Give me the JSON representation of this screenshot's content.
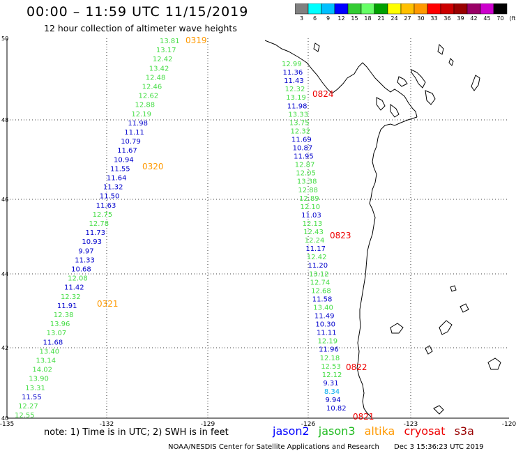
{
  "header": {
    "title": "00:00 – 11:59 UTC 11/15/2019",
    "subtitle": "12 hour collection of altimeter wave heights"
  },
  "color_scale": {
    "labels": [
      "3",
      "6",
      "9",
      "12",
      "15",
      "18",
      "21",
      "24",
      "27",
      "30",
      "33",
      "36",
      "39",
      "42",
      "45",
      "70",
      "(ft)"
    ],
    "colors": [
      "#808080",
      "#00ffff",
      "#00bfff",
      "#0000ff",
      "#33cc33",
      "#66ff66",
      "#00a000",
      "#ffff00",
      "#ffc000",
      "#ff9900",
      "#ff0000",
      "#cc0000",
      "#990000",
      "#990066",
      "#cc00cc",
      "#000000"
    ]
  },
  "map": {
    "lat_labels": [
      "50",
      "48",
      "46",
      "44",
      "42",
      "40"
    ],
    "lon_labels": [
      "-135",
      "-132",
      "-129",
      "-126",
      "-123",
      "-120"
    ],
    "tracks": [
      {
        "id": "track-0319-0321",
        "points": [
          {
            "v": "13.81",
            "c": "green"
          },
          {
            "v": "13.17",
            "c": "green"
          },
          {
            "v": "12.42",
            "c": "green"
          },
          {
            "v": "13.42",
            "c": "green"
          },
          {
            "v": "12.48",
            "c": "green"
          },
          {
            "v": "12.46",
            "c": "green"
          },
          {
            "v": "12.62",
            "c": "green"
          },
          {
            "v": "12.88",
            "c": "green"
          },
          {
            "v": "12.19",
            "c": "green"
          },
          {
            "v": "11.98",
            "c": "blue"
          },
          {
            "v": "11.11",
            "c": "blue"
          },
          {
            "v": "10.79",
            "c": "blue"
          },
          {
            "v": "11.67",
            "c": "blue"
          },
          {
            "v": "10.94",
            "c": "blue"
          },
          {
            "v": "11.55",
            "c": "blue"
          },
          {
            "v": "11.64",
            "c": "blue"
          },
          {
            "v": "11.32",
            "c": "blue"
          },
          {
            "v": "11.50",
            "c": "blue"
          },
          {
            "v": "11.63",
            "c": "blue"
          },
          {
            "v": "12.75",
            "c": "green"
          },
          {
            "v": "12.78",
            "c": "green"
          },
          {
            "v": "11.73",
            "c": "blue"
          },
          {
            "v": "10.93",
            "c": "blue"
          },
          {
            "v": "9.97",
            "c": "blue"
          },
          {
            "v": "11.33",
            "c": "blue"
          },
          {
            "v": "10.68",
            "c": "blue"
          },
          {
            "v": "12.08",
            "c": "green"
          },
          {
            "v": "11.42",
            "c": "blue"
          },
          {
            "v": "12.32",
            "c": "green"
          },
          {
            "v": "11.91",
            "c": "blue"
          },
          {
            "v": "12.38",
            "c": "green"
          },
          {
            "v": "13.96",
            "c": "green"
          },
          {
            "v": "13.07",
            "c": "green"
          },
          {
            "v": "11.68",
            "c": "blue"
          },
          {
            "v": "13.40",
            "c": "green"
          },
          {
            "v": "13.14",
            "c": "green"
          },
          {
            "v": "14.02",
            "c": "green"
          },
          {
            "v": "13.90",
            "c": "green"
          },
          {
            "v": "13.31",
            "c": "green"
          },
          {
            "v": "11.55",
            "c": "blue"
          },
          {
            "v": "12.27",
            "c": "green"
          },
          {
            "v": "12.55",
            "c": "green"
          }
        ]
      },
      {
        "id": "track-0821-0824",
        "points": [
          {
            "v": "12.99",
            "c": "green"
          },
          {
            "v": "11.36",
            "c": "blue"
          },
          {
            "v": "11.43",
            "c": "blue"
          },
          {
            "v": "12.32",
            "c": "green"
          },
          {
            "v": "13.19",
            "c": "green"
          },
          {
            "v": "11.98",
            "c": "blue"
          },
          {
            "v": "13.33",
            "c": "green"
          },
          {
            "v": "13.75",
            "c": "green"
          },
          {
            "v": "12.32",
            "c": "green"
          },
          {
            "v": "11.69",
            "c": "blue"
          },
          {
            "v": "10.87",
            "c": "blue"
          },
          {
            "v": "11.95",
            "c": "blue"
          },
          {
            "v": "12.87",
            "c": "green"
          },
          {
            "v": "12.05",
            "c": "green"
          },
          {
            "v": "13.38",
            "c": "green"
          },
          {
            "v": "12.88",
            "c": "green"
          },
          {
            "v": "12.89",
            "c": "green"
          },
          {
            "v": "12.10",
            "c": "green"
          },
          {
            "v": "11.03",
            "c": "blue"
          },
          {
            "v": "12.13",
            "c": "green"
          },
          {
            "v": "12.43",
            "c": "green"
          },
          {
            "v": "12.24",
            "c": "green"
          },
          {
            "v": "11.17",
            "c": "blue"
          },
          {
            "v": "12.42",
            "c": "green"
          },
          {
            "v": "11.20",
            "c": "blue"
          },
          {
            "v": "13.12",
            "c": "green"
          },
          {
            "v": "12.74",
            "c": "green"
          },
          {
            "v": "12.68",
            "c": "green"
          },
          {
            "v": "11.58",
            "c": "blue"
          },
          {
            "v": "13.40",
            "c": "green"
          },
          {
            "v": "11.49",
            "c": "blue"
          },
          {
            "v": "10.30",
            "c": "blue"
          },
          {
            "v": "11.11",
            "c": "blue"
          },
          {
            "v": "12.19",
            "c": "green"
          },
          {
            "v": "11.96",
            "c": "blue"
          },
          {
            "v": "12.18",
            "c": "green"
          },
          {
            "v": "12.53",
            "c": "green"
          },
          {
            "v": "12.12",
            "c": "green"
          },
          {
            "v": "9.31",
            "c": "blue"
          },
          {
            "v": "8.34",
            "c": "cyan"
          },
          {
            "v": "9.94",
            "c": "blue"
          },
          {
            "v": "10.82",
            "c": "blue"
          }
        ]
      }
    ],
    "time_labels": [
      {
        "t": "0319",
        "c": "orange"
      },
      {
        "t": "0320",
        "c": "orange"
      },
      {
        "t": "0321",
        "c": "orange"
      },
      {
        "t": "0824",
        "c": "red"
      },
      {
        "t": "0823",
        "c": "red"
      },
      {
        "t": "0822",
        "c": "red"
      },
      {
        "t": "0821",
        "c": "red"
      }
    ],
    "series_colors": {
      "green": "#44dd44",
      "blue": "#0000cc",
      "cyan": "#00aaee",
      "orange": "#ff9900",
      "red": "#ee0000"
    }
  },
  "bottom": {
    "note": "note: 1) Time is in UTC; 2) SWH is in feet",
    "legend": [
      {
        "label": "jason2",
        "color": "#0000ff"
      },
      {
        "label": "jason3",
        "color": "#22bb22"
      },
      {
        "label": "altika",
        "color": "#ff9900"
      },
      {
        "label": "cryosat",
        "color": "#ee0000"
      },
      {
        "label": "s3a",
        "color": "#990000"
      }
    ],
    "footer_org": "NOAA/NESDIS Center for Satellite Applications and Research",
    "footer_time": "Dec  3 15:36:23 UTC 2019"
  }
}
